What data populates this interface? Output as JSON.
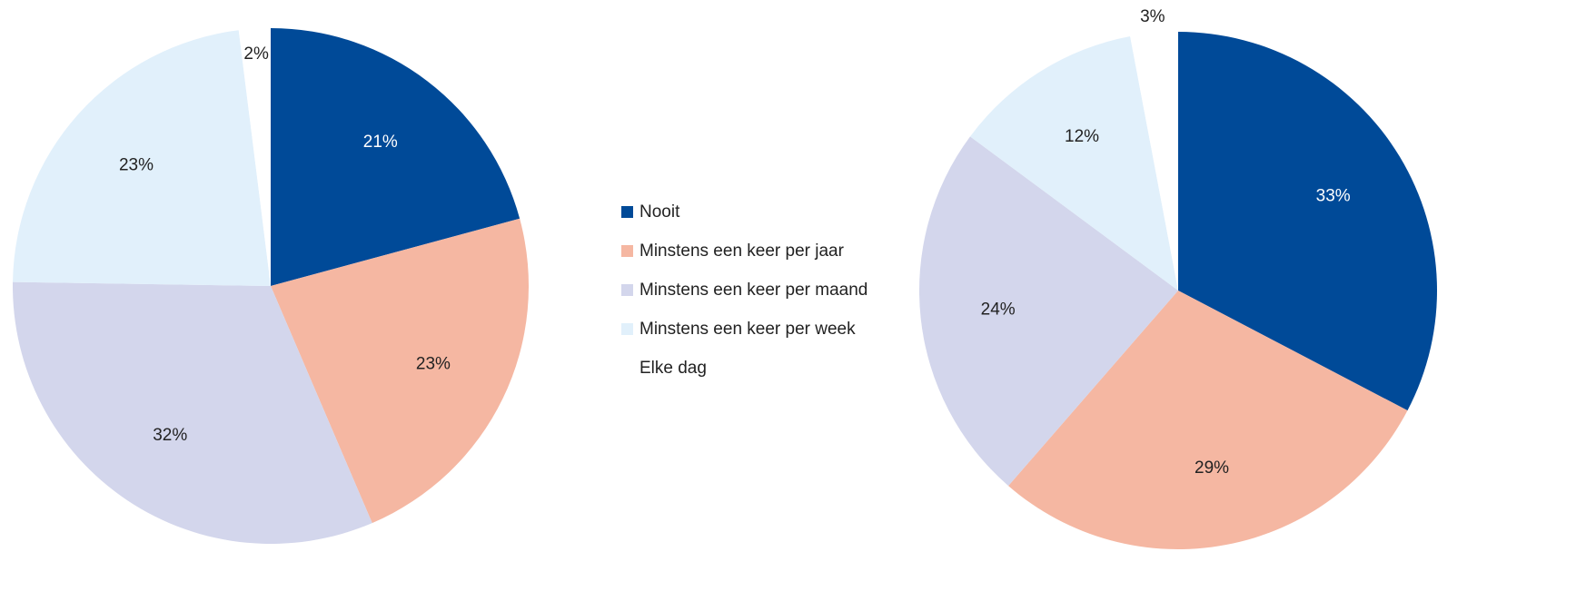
{
  "chart_data": [
    {
      "type": "pie",
      "categories": [
        "Nooit",
        "Minstens een keer per jaar",
        "Minstens een keer per maand",
        "Minstens een keer per week",
        "Elke dag"
      ],
      "colors": [
        "#004a98",
        "#f5b7a2",
        "#d3d6ec",
        "#e1f0fb",
        "#ffffff"
      ],
      "values": [
        21,
        23,
        32,
        23,
        2
      ],
      "value_labels": [
        "21%",
        "23%",
        "32%",
        "23%",
        "2%"
      ]
    },
    {
      "type": "pie",
      "values": [
        33,
        29,
        24,
        12,
        3
      ],
      "value_labels": [
        "33%",
        "29%",
        "24%",
        "12%",
        "3%"
      ]
    }
  ]
}
